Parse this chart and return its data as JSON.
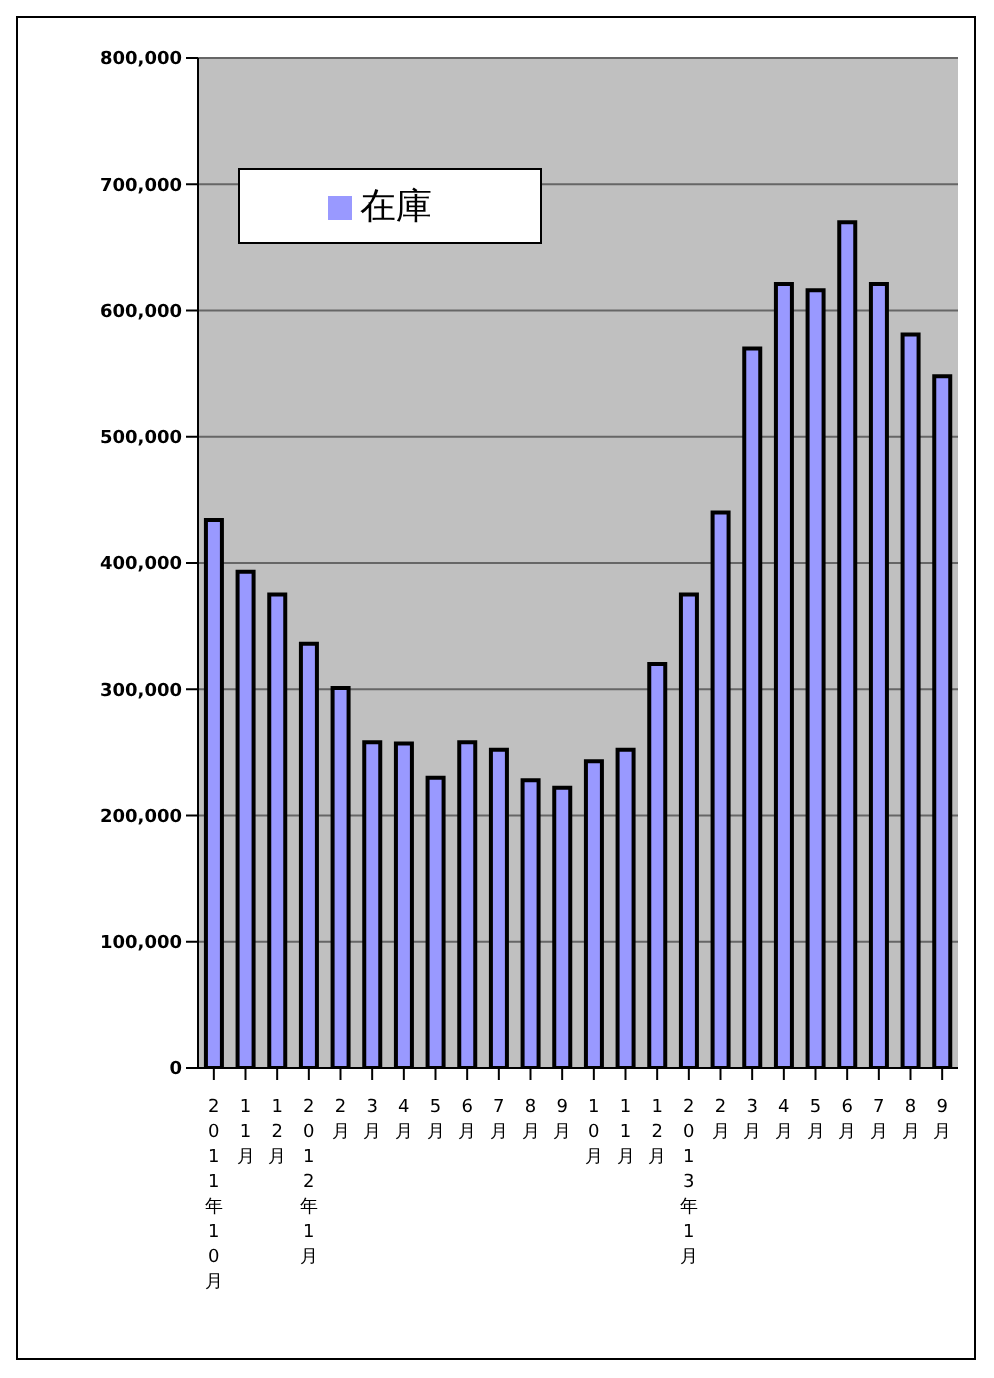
{
  "chart_data": {
    "type": "bar",
    "categories": [
      "2011年10月",
      "11月",
      "12月",
      "2012年1月",
      "2月",
      "3月",
      "4月",
      "5月",
      "6月",
      "7月",
      "8月",
      "9月",
      "10月",
      "11月",
      "12月",
      "2013年1月",
      "2月",
      "3月",
      "4月",
      "5月",
      "6月",
      "7月",
      "8月",
      "9月"
    ],
    "series": [
      {
        "name": "在庫",
        "color": "#9999ff",
        "values": [
          434000,
          393000,
          375000,
          336000,
          301000,
          258000,
          257000,
          230000,
          258000,
          252000,
          228000,
          222000,
          243000,
          252000,
          320000,
          375000,
          440000,
          570000,
          621000,
          616000,
          670000,
          621000,
          581000,
          548000
        ]
      }
    ],
    "ylim": [
      0,
      800000
    ],
    "yticks": [
      0,
      {
        "value": 100000,
        "label": "100,000"
      },
      {
        "value": 200000,
        "label": "200,000"
      },
      {
        "value": 300000,
        "label": "300,000"
      },
      {
        "value": 400000,
        "label": "400,000"
      },
      {
        "value": 500000,
        "label": "500,000"
      },
      {
        "value": 600000,
        "label": "600,000"
      },
      {
        "value": 700000,
        "label": "700,000"
      },
      {
        "value": 800000,
        "label": "800,000"
      }
    ],
    "grid": "y",
    "legend": "top left"
  }
}
